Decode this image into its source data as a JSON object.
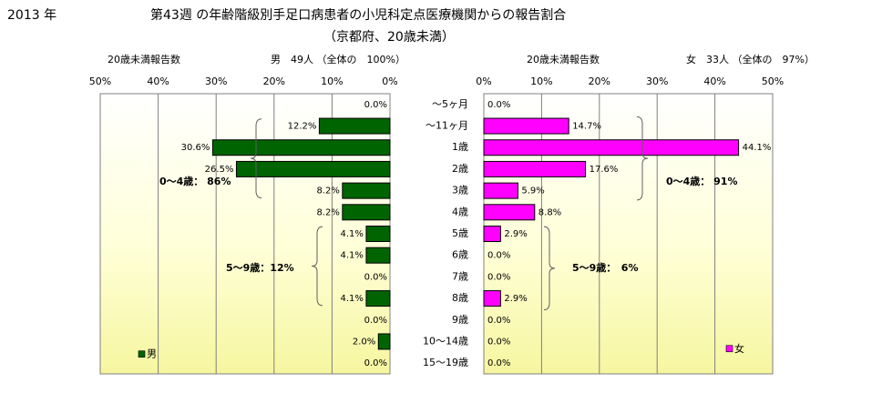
{
  "header": {
    "year": "2013 年",
    "title_line1": "第43週 の年齢階級別手足口病患者の小児科定点医療機関からの報告割合",
    "title_line2": "（京都府、20歳未満）"
  },
  "colors": {
    "male_bar": "#006400",
    "female_bar": "#ff00ff",
    "grid": "#808080"
  },
  "chart_data": [
    {
      "type": "bar",
      "orientation": "horizontal",
      "direction": "right-to-left",
      "subtitle_left": "20歳未満報告数",
      "subtitle_right": "男　49人 （全体の　100%）",
      "xticks": [
        "50%",
        "40%",
        "30%",
        "20%",
        "10%",
        "0%"
      ],
      "xlim": [
        0,
        50
      ],
      "categories": [
        "～5ヶ月",
        "～11ヶ月",
        "1歳",
        "2歳",
        "3歳",
        "4歳",
        "5歳",
        "6歳",
        "7歳",
        "8歳",
        "9歳",
        "10～14歳",
        "15～19歳"
      ],
      "series": [
        {
          "name": "男",
          "values": [
            0.0,
            12.2,
            30.6,
            26.5,
            8.2,
            8.2,
            4.1,
            4.1,
            0.0,
            4.1,
            0.0,
            2.0,
            0.0
          ]
        }
      ],
      "data_labels": [
        "0.0%",
        "12.2%",
        "30.6%",
        "26.5%",
        "8.2%",
        "8.2%",
        "4.1%",
        "4.1%",
        "0.0%",
        "4.1%",
        "0.0%",
        "2.0%",
        "0.0%"
      ],
      "annotations": [
        "0～4歳： 86%",
        "5～9歳：12%"
      ],
      "legend": "bottom-left"
    },
    {
      "type": "bar",
      "orientation": "horizontal",
      "direction": "left-to-right",
      "subtitle_left": "20歳未満報告数",
      "subtitle_right": "女　33人 （全体の　97%）",
      "xticks": [
        "0%",
        "10%",
        "20%",
        "30%",
        "40%",
        "50%"
      ],
      "xlim": [
        0,
        50
      ],
      "categories": [
        "～5ヶ月",
        "～11ヶ月",
        "1歳",
        "2歳",
        "3歳",
        "4歳",
        "5歳",
        "6歳",
        "7歳",
        "8歳",
        "9歳",
        "10～14歳",
        "15～19歳"
      ],
      "series": [
        {
          "name": "女",
          "values": [
            0.0,
            14.7,
            44.1,
            17.6,
            5.9,
            8.8,
            2.9,
            0.0,
            0.0,
            2.9,
            0.0,
            0.0,
            0.0
          ]
        }
      ],
      "data_labels": [
        "0.0%",
        "14.7%",
        "44.1%",
        "17.6%",
        "5.9%",
        "8.8%",
        "2.9%",
        "0.0%",
        "0.0%",
        "2.9%",
        "0.0%",
        "0.0%",
        "0.0%"
      ],
      "annotations": [
        "0～4歳： 91%",
        "5～9歳：　6%"
      ],
      "legend": "bottom-right"
    }
  ]
}
